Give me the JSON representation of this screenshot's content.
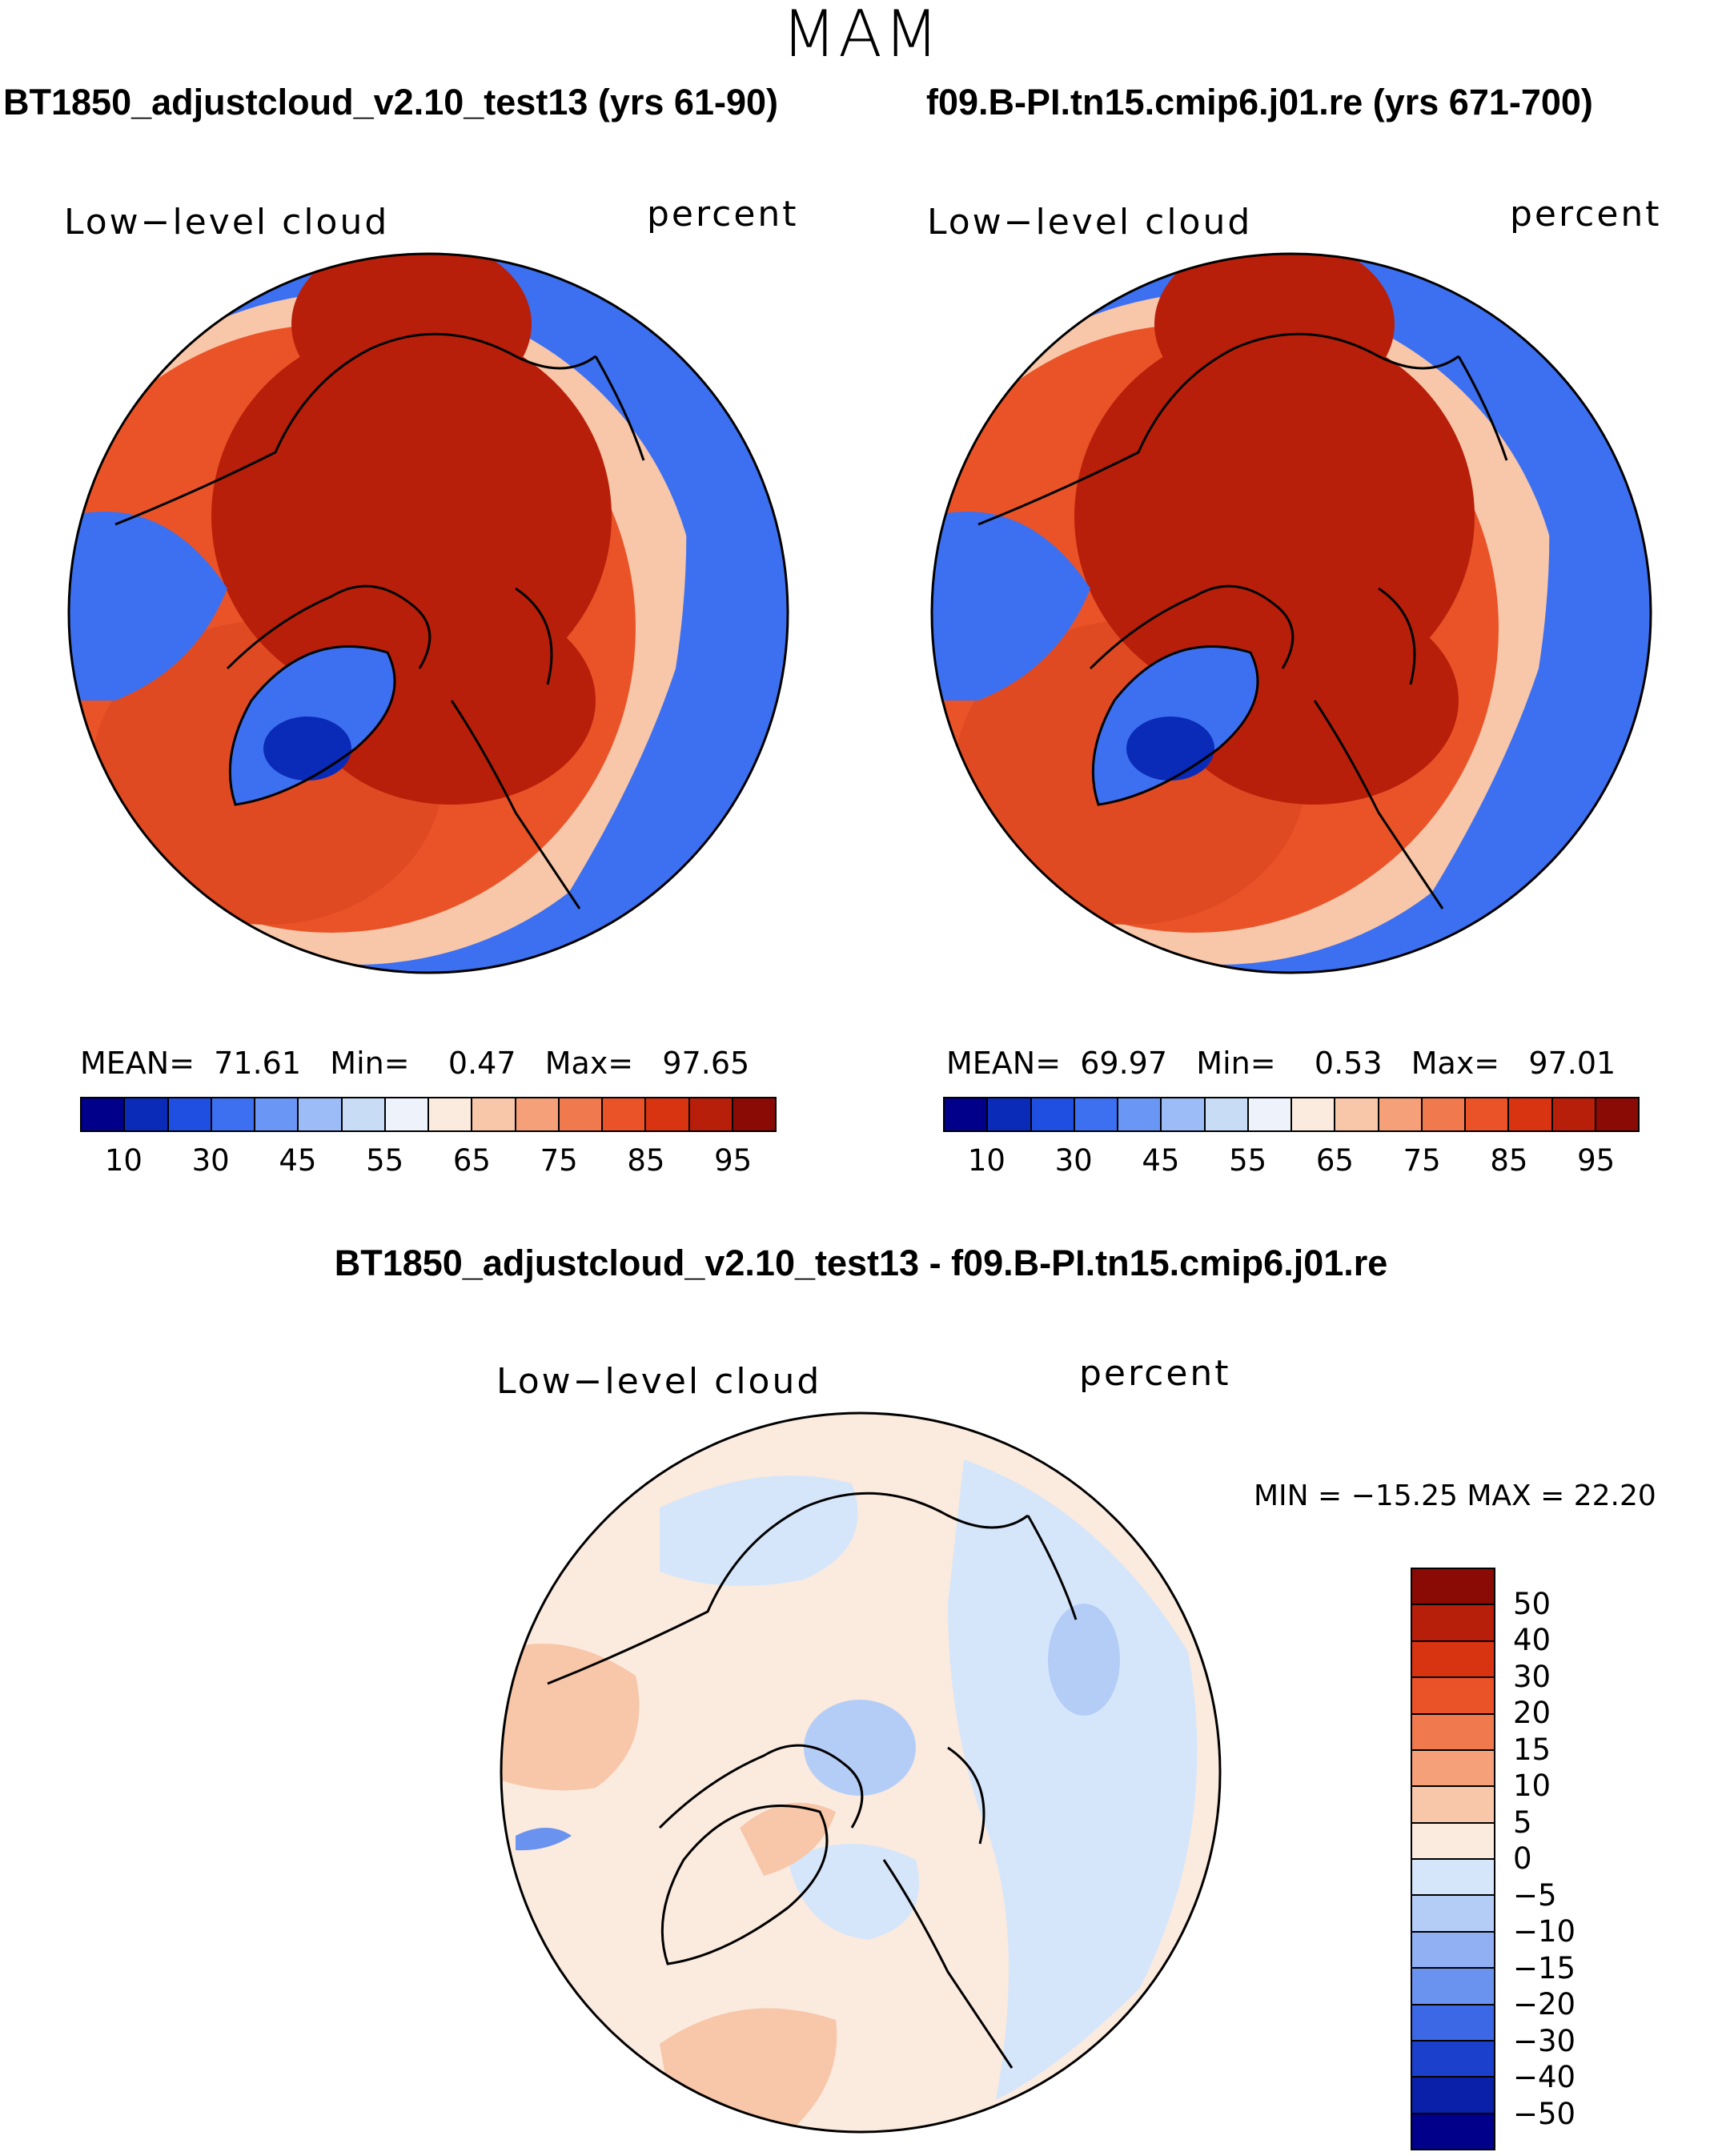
{
  "figure": {
    "season": "MAM",
    "diff_title": "BT1850_adjustcloud_v2.10_test13 - f09.B-PI.tn15.cmip6.j01.re"
  },
  "panels": [
    {
      "title": "BT1850_adjustcloud_v2.10_test13 (yrs 61-90)",
      "variable": "Low−level cloud",
      "units": "percent",
      "mean_label": "MEAN=",
      "mean": "71.61",
      "min_label": "Min=",
      "min": "0.47",
      "max_label": "Max=",
      "max": "97.65"
    },
    {
      "title": "f09.B-PI.tn15.cmip6.j01.re (yrs 671-700)",
      "variable": "Low−level cloud",
      "units": "percent",
      "mean_label": "MEAN=",
      "mean": "69.97",
      "min_label": "Min=",
      "min": "0.53",
      "max_label": "Max=",
      "max": "97.01"
    }
  ],
  "diff_panel": {
    "variable": "Low−level cloud",
    "units": "percent",
    "minmax_text": "MIN = −15.25 MAX =   22.20"
  },
  "colorbar_abs": {
    "tick_labels": [
      "10",
      "30",
      "45",
      "55",
      "65",
      "75",
      "85",
      "95"
    ],
    "colors": [
      "#00008b",
      "#0a2ab8",
      "#1f4fe0",
      "#3c70f0",
      "#6a96f5",
      "#9cbcf7",
      "#c9dcf6",
      "#eef3fb",
      "#fbeade",
      "#f8c6a8",
      "#f5a078",
      "#f07a4e",
      "#ea5328",
      "#d93412",
      "#b81f0a",
      "#8a0a05"
    ]
  },
  "colorbar_diff": {
    "tick_labels": [
      "50",
      "40",
      "30",
      "20",
      "15",
      "10",
      "5",
      "0",
      "−5",
      "−10",
      "−15",
      "−20",
      "−30",
      "−40",
      "−50"
    ],
    "colors": [
      "#8a0a05",
      "#b81f0a",
      "#d93412",
      "#ea5328",
      "#f07a4e",
      "#f5a078",
      "#f8c6a8",
      "#fbeade",
      "#d6e6fa",
      "#b4cdf7",
      "#90b0f3",
      "#6a92ef",
      "#3c68e5",
      "#1a40cc",
      "#0a20a8",
      "#00008b"
    ]
  },
  "map_fields": {
    "panel1": {
      "ocean_ne": "#3c70f0",
      "ocean_w": "#3c70f0",
      "north_atlantic": "#e04a22",
      "pole": "#b81f0a",
      "greenland": "#3c70f0",
      "greenland_core": "#0a2ab8",
      "ring_light": "#f8c6a8",
      "canada": "#ea5328"
    },
    "panel2": {
      "ocean_ne": "#3c70f0",
      "ocean_w": "#3c70f0",
      "north_atlantic": "#e04a22",
      "pole": "#b81f0a",
      "greenland": "#3c70f0",
      "greenland_core": "#0a2ab8",
      "ring_light": "#f8c6a8",
      "canada": "#ea5328"
    },
    "diff": {
      "background": "#fbeade",
      "light_blue": "#d6e6fa",
      "mid_blue": "#b4cdf7",
      "light_red": "#f8c6a8",
      "dark_blue": "#6a92ef"
    }
  }
}
